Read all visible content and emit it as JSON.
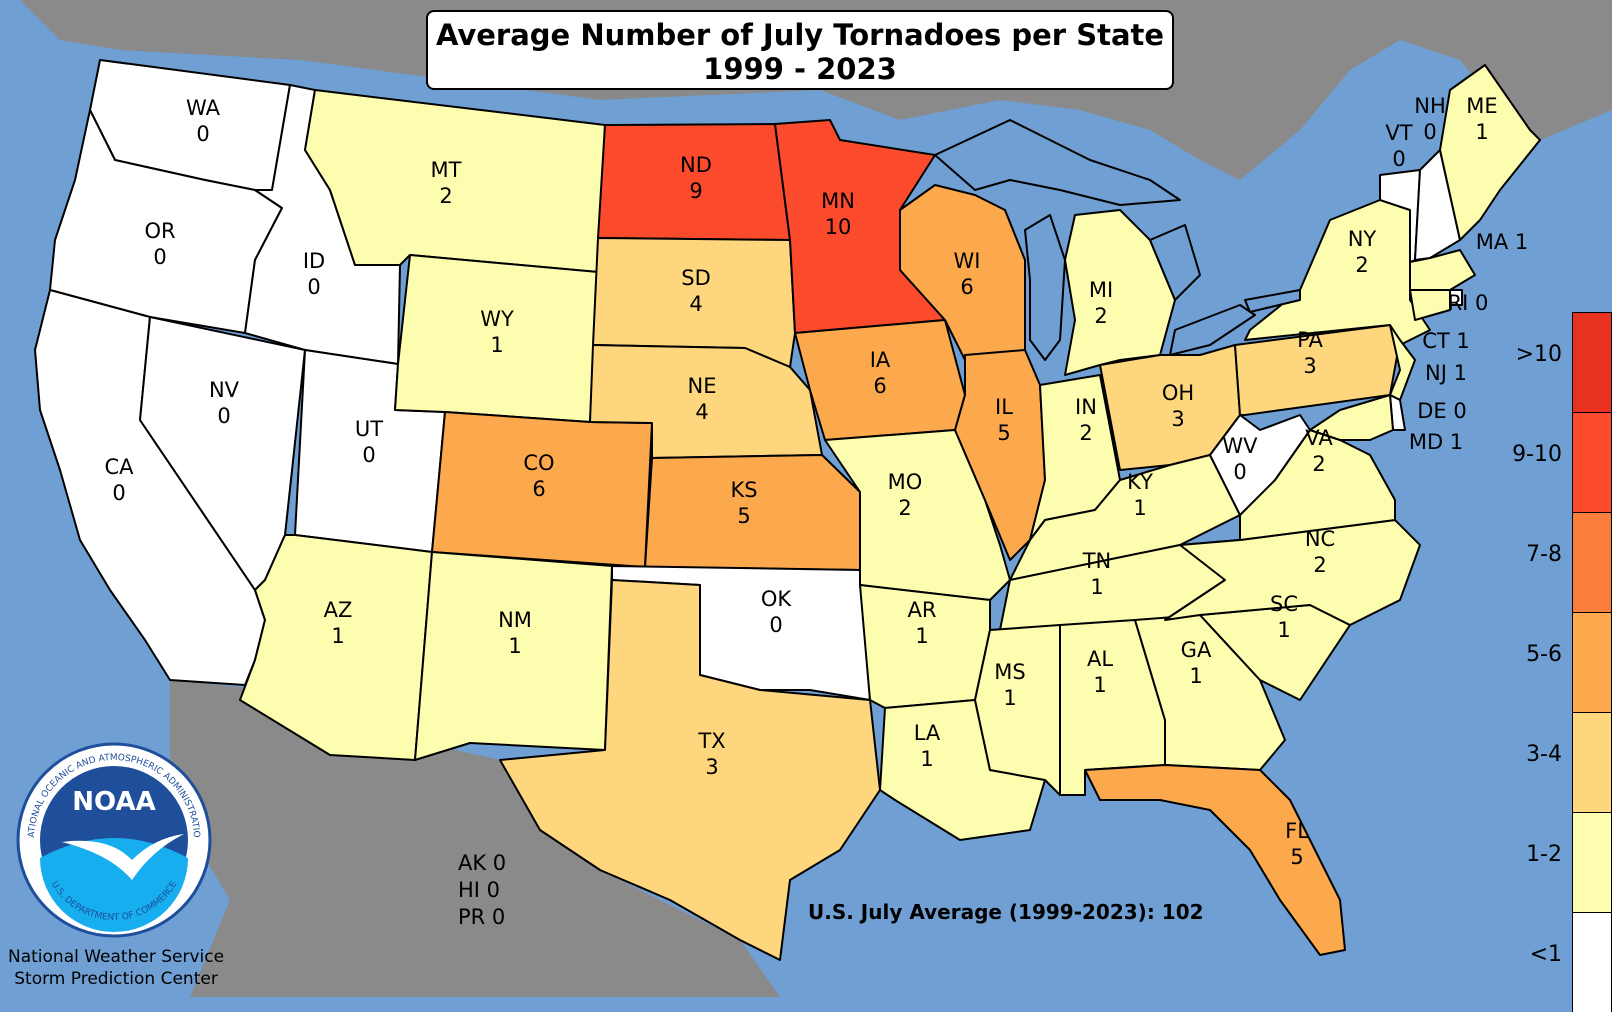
{
  "title": {
    "line1": "Average Number of July Tornadoes per State",
    "line2": "1999 - 2023"
  },
  "us_average": "U.S. July Average (1999-2023): 102",
  "other": {
    "ak": "AK 0",
    "hi": "HI 0",
    "pr": "PR 0"
  },
  "credit": {
    "line1": "National Weather Service",
    "line2": "Storm Prediction Center"
  },
  "logo_text": {
    "center": "NOAA",
    "ring_top": "NATIONAL OCEANIC AND ATMOSPHERIC ADMINISTRATION",
    "ring_bottom": "U.S. DEPARTMENT OF COMMERCE"
  },
  "legend": [
    {
      "label": ">10",
      "color": "#e8321f"
    },
    {
      "label": "9-10",
      "color": "#fb4b2c"
    },
    {
      "label": "7-8",
      "color": "#fb7d3b"
    },
    {
      "label": "5-6",
      "color": "#fca94d"
    },
    {
      "label": "3-4",
      "color": "#fdd67d"
    },
    {
      "label": "1-2",
      "color": "#fdfdb0"
    },
    {
      "label": "<1",
      "color": "#ffffff"
    }
  ],
  "colors": {
    "ocean": "#6f9fd3",
    "land": "#8a8a8a",
    "lakes": "#6f9fd3"
  },
  "states": [
    {
      "code": "WA",
      "value": "0"
    },
    {
      "code": "OR",
      "value": "0"
    },
    {
      "code": "CA",
      "value": "0"
    },
    {
      "code": "ID",
      "value": "0"
    },
    {
      "code": "NV",
      "value": "0"
    },
    {
      "code": "UT",
      "value": "0"
    },
    {
      "code": "AZ",
      "value": "1"
    },
    {
      "code": "MT",
      "value": "2"
    },
    {
      "code": "WY",
      "value": "1"
    },
    {
      "code": "CO",
      "value": "6"
    },
    {
      "code": "NM",
      "value": "1"
    },
    {
      "code": "ND",
      "value": "9"
    },
    {
      "code": "SD",
      "value": "4"
    },
    {
      "code": "NE",
      "value": "4"
    },
    {
      "code": "KS",
      "value": "5"
    },
    {
      "code": "OK",
      "value": "0"
    },
    {
      "code": "TX",
      "value": "3"
    },
    {
      "code": "MN",
      "value": "10"
    },
    {
      "code": "IA",
      "value": "6"
    },
    {
      "code": "MO",
      "value": "2"
    },
    {
      "code": "AR",
      "value": "1"
    },
    {
      "code": "LA",
      "value": "1"
    },
    {
      "code": "WI",
      "value": "6"
    },
    {
      "code": "IL",
      "value": "5"
    },
    {
      "code": "MI",
      "value": "2"
    },
    {
      "code": "IN",
      "value": "2"
    },
    {
      "code": "OH",
      "value": "3"
    },
    {
      "code": "KY",
      "value": "1"
    },
    {
      "code": "TN",
      "value": "1"
    },
    {
      "code": "MS",
      "value": "1"
    },
    {
      "code": "AL",
      "value": "1"
    },
    {
      "code": "GA",
      "value": "1"
    },
    {
      "code": "FL",
      "value": "5"
    },
    {
      "code": "SC",
      "value": "1"
    },
    {
      "code": "NC",
      "value": "2"
    },
    {
      "code": "VA",
      "value": "2"
    },
    {
      "code": "WV",
      "value": "0"
    },
    {
      "code": "PA",
      "value": "3"
    },
    {
      "code": "NY",
      "value": "2"
    },
    {
      "code": "VT",
      "value": "0"
    },
    {
      "code": "NH",
      "value": "0"
    },
    {
      "code": "ME",
      "value": "1"
    },
    {
      "code": "MA",
      "value": "1"
    },
    {
      "code": "RI",
      "value": "0"
    },
    {
      "code": "CT",
      "value": "1"
    },
    {
      "code": "NJ",
      "value": "1"
    },
    {
      "code": "DE",
      "value": "0"
    },
    {
      "code": "MD",
      "value": "1"
    }
  ]
}
